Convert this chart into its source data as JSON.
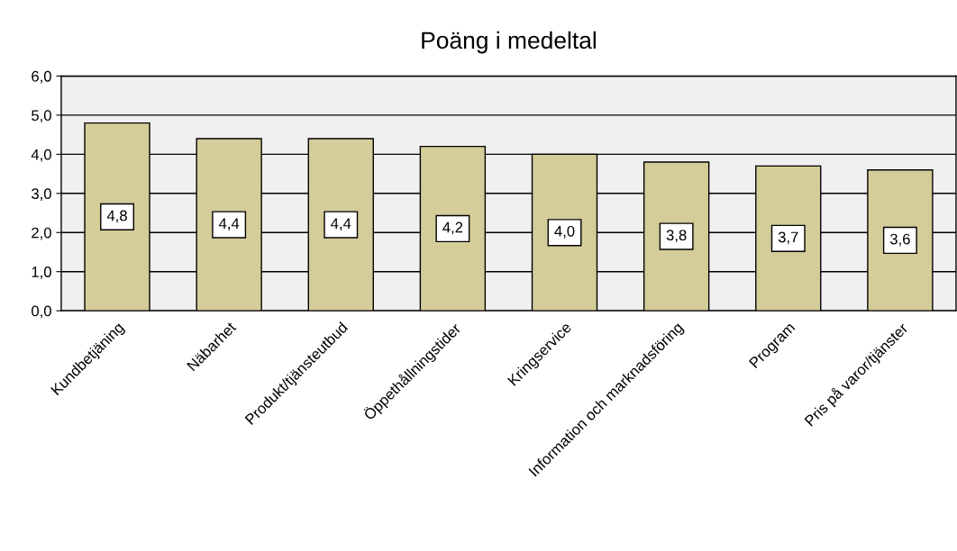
{
  "chart_data": {
    "type": "bar",
    "title": "Poäng i medeltal",
    "categories": [
      "Kundbetjäning",
      "Näbarhet",
      "Produkt/tjänsteutbud",
      "Öppethållningstider",
      "Kringservice",
      "Information och marknadsföring",
      "Program",
      "Pris på varor/tjänster"
    ],
    "values": [
      4.8,
      4.4,
      4.4,
      4.2,
      4.0,
      3.8,
      3.7,
      3.6
    ],
    "value_labels": [
      "4,8",
      "4,4",
      "4,4",
      "4,2",
      "4,0",
      "3,8",
      "3,7",
      "3,6"
    ],
    "color": "#d4cc99",
    "ylim": [
      0,
      6
    ],
    "yticks": [
      {
        "value": 0,
        "label": "0,0"
      },
      {
        "value": 1,
        "label": "1,0"
      },
      {
        "value": 2,
        "label": "2,0"
      },
      {
        "value": 3,
        "label": "3,0"
      },
      {
        "value": 4,
        "label": "4,0"
      },
      {
        "value": 5,
        "label": "5,0"
      },
      {
        "value": 6,
        "label": "6,0"
      }
    ],
    "grid": "y",
    "legend": false
  }
}
